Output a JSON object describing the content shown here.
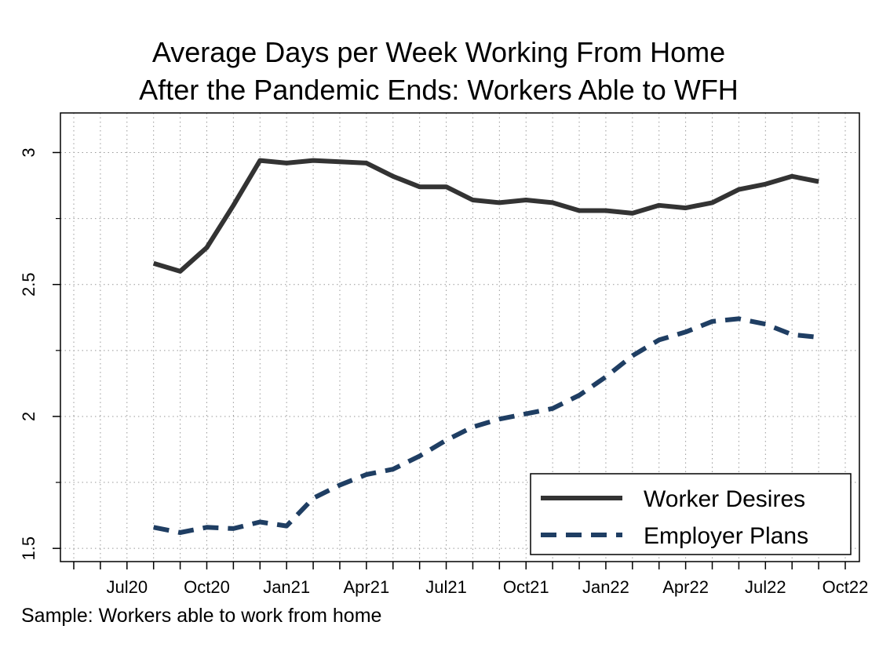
{
  "chart_data": {
    "type": "line",
    "title_lines": [
      "Average Days per Week Working From Home",
      "After the Pandemic Ends: Workers Able to WFH"
    ],
    "xlabel": "",
    "ylabel": "",
    "x": [
      "2020-08",
      "2020-09",
      "2020-10",
      "2020-11",
      "2020-12",
      "2021-01",
      "2021-02",
      "2021-03",
      "2021-04",
      "2021-05",
      "2021-06",
      "2021-07",
      "2021-08",
      "2021-09",
      "2021-10",
      "2021-11",
      "2021-12",
      "2022-01",
      "2022-02",
      "2022-03",
      "2022-04",
      "2022-05",
      "2022-06",
      "2022-07",
      "2022-08",
      "2022-09"
    ],
    "x_range": [
      "2020-05",
      "2022-10"
    ],
    "x_ticks": [
      {
        "date": "2020-07",
        "label": "Jul20"
      },
      {
        "date": "2020-10",
        "label": "Oct20"
      },
      {
        "date": "2021-01",
        "label": "Jan21"
      },
      {
        "date": "2021-04",
        "label": "Apr21"
      },
      {
        "date": "2021-07",
        "label": "Jul21"
      },
      {
        "date": "2021-10",
        "label": "Oct21"
      },
      {
        "date": "2022-01",
        "label": "Jan22"
      },
      {
        "date": "2022-04",
        "label": "Apr22"
      },
      {
        "date": "2022-07",
        "label": "Jul22"
      },
      {
        "date": "2022-10",
        "label": "Oct22"
      }
    ],
    "ylim": [
      1.45,
      3.15
    ],
    "y_ticks": [
      1.5,
      2,
      2.5,
      3
    ],
    "y_tick_labels": [
      "1.5",
      "2",
      "2.5",
      "3"
    ],
    "y_minor_grid": [
      1.75,
      2.25,
      2.75
    ],
    "grid": "dotted",
    "legend_position": "bottom-right",
    "series": [
      {
        "name": "Worker Desires",
        "color": "#333333",
        "style": "solid",
        "values": [
          2.58,
          2.55,
          2.64,
          2.8,
          2.97,
          2.96,
          2.97,
          2.965,
          2.96,
          2.91,
          2.87,
          2.87,
          2.82,
          2.81,
          2.82,
          2.81,
          2.78,
          2.78,
          2.77,
          2.8,
          2.79,
          2.81,
          2.86,
          2.88,
          2.91,
          2.89
        ]
      },
      {
        "name": "Employer Plans",
        "color": "#1f3e63",
        "style": "dashed",
        "values": [
          1.58,
          1.56,
          1.58,
          1.575,
          1.6,
          1.585,
          1.69,
          1.74,
          1.78,
          1.8,
          1.85,
          1.91,
          1.96,
          1.99,
          2.01,
          2.03,
          2.08,
          2.15,
          2.23,
          2.29,
          2.32,
          2.36,
          2.37,
          2.35,
          2.31,
          2.3
        ]
      }
    ]
  },
  "footnote": "Sample: Workers able to work from home"
}
